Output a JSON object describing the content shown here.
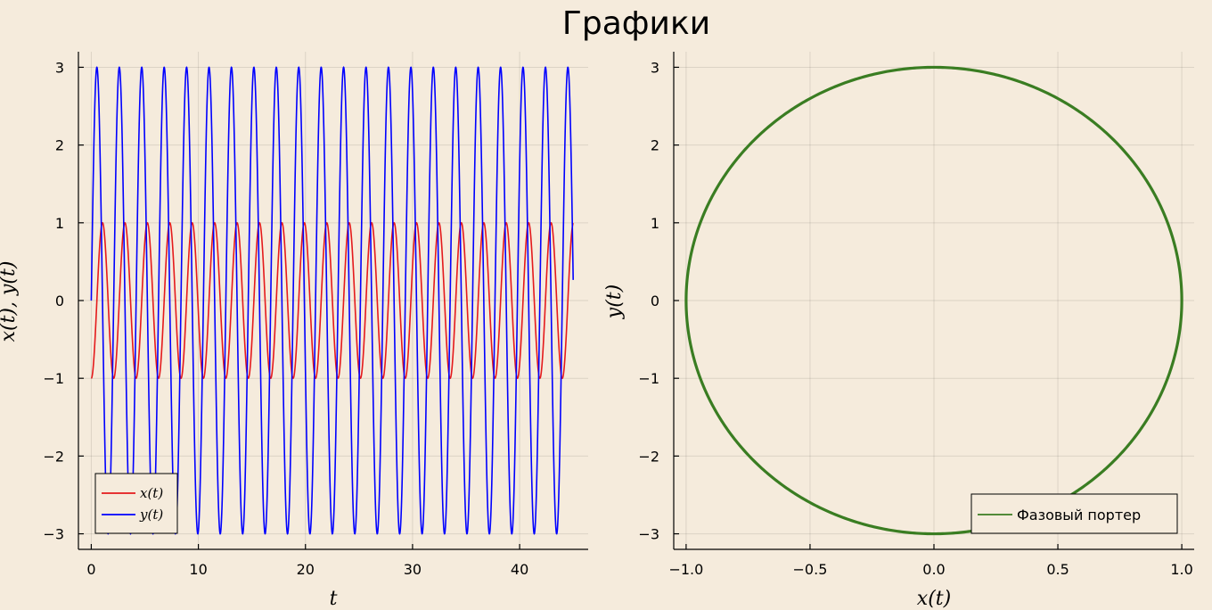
{
  "figure_title": "Графики",
  "colors": {
    "background": "#f5ebdc",
    "x_series": "#e41a1c",
    "y_series": "#0000ff",
    "phase": "#3a7d22"
  },
  "chart_data": [
    {
      "type": "line",
      "title": "",
      "xlabel": "t",
      "ylabel": "x(t), y(t)",
      "xlim": [
        -1.2,
        46.4
      ],
      "ylim": [
        -3.2,
        3.2
      ],
      "xticks": [
        0,
        10,
        20,
        30,
        40
      ],
      "xtick_labels": [
        "0",
        "10",
        "20",
        "30",
        "40"
      ],
      "yticks": [
        -3,
        -2,
        -1,
        0,
        1,
        2,
        3
      ],
      "ytick_labels": [
        "−3",
        "−2",
        "−1",
        "0",
        "1",
        "2",
        "3"
      ],
      "grid": true,
      "legend": "bottom-left",
      "series": [
        {
          "name": "x(t)",
          "color": "#e41a1c",
          "formula": "x = -cos(3t)",
          "t_range": [
            0,
            45
          ],
          "amplitude": 1,
          "angular_frequency": 3
        },
        {
          "name": "y(t)",
          "color": "#0000ff",
          "formula": "y = 3 sin(3t)",
          "t_range": [
            0,
            45
          ],
          "amplitude": 3,
          "angular_frequency": 3
        }
      ]
    },
    {
      "type": "line",
      "title": "",
      "xlabel": "x(t)",
      "ylabel": "y(t)",
      "xlim": [
        -1.05,
        1.05
      ],
      "ylim": [
        -3.2,
        3.2
      ],
      "xticks": [
        -1,
        -0.5,
        0,
        0.5,
        1
      ],
      "xtick_labels": [
        "−1.0",
        "−0.5",
        "0.0",
        "0.5",
        "1.0"
      ],
      "yticks": [
        -3,
        -2,
        -1,
        0,
        1,
        2,
        3
      ],
      "ytick_labels": [
        "−3",
        "−2",
        "−1",
        "0",
        "1",
        "2",
        "3"
      ],
      "grid": true,
      "legend": "bottom-right",
      "series": [
        {
          "name": "Фазовый портер",
          "color": "#3a7d22",
          "formula": "ellipse x=-cos(3t), y=3 sin(3t)",
          "x_semi_axis": 1,
          "y_semi_axis": 3
        }
      ]
    }
  ]
}
